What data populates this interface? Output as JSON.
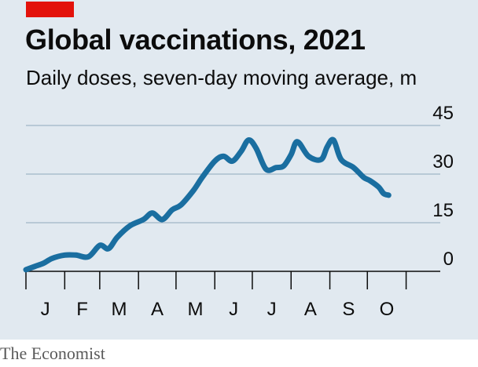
{
  "header": {
    "title": "Global vaccinations, 2021",
    "subtitle": "Daily doses, seven-day moving average, m"
  },
  "footer": {
    "source": "The Economist"
  },
  "colors": {
    "line": "#1a6ea0",
    "panel": "#e1e9f0",
    "accent": "#e3120b",
    "grid": "#8fa9bd"
  },
  "chart_data": {
    "type": "line",
    "title": "Global vaccinations, 2021",
    "subtitle": "Daily doses, seven-day moving average, m",
    "xlabel": "",
    "ylabel": "",
    "ylim": [
      0,
      45
    ],
    "yticks": [
      0,
      15,
      30,
      45
    ],
    "ytick_labels": [
      "0",
      "15",
      "30",
      "45"
    ],
    "xlim": [
      "2021-01-01",
      "2021-10-31"
    ],
    "month_ticks": [
      "2021-01-01",
      "2021-02-01",
      "2021-03-01",
      "2021-04-01",
      "2021-05-01",
      "2021-06-01",
      "2021-07-01",
      "2021-08-01",
      "2021-09-01",
      "2021-10-01",
      "2021-11-01"
    ],
    "xtick_labels": [
      "J",
      "F",
      "M",
      "A",
      "M",
      "J",
      "J",
      "A",
      "S",
      "O"
    ],
    "grid": true,
    "series": [
      {
        "x": [
          "2021-01-01",
          "2021-01-08",
          "2021-01-15",
          "2021-01-22",
          "2021-02-01",
          "2021-02-10",
          "2021-02-20",
          "2021-03-01",
          "2021-03-08",
          "2021-03-15",
          "2021-03-25",
          "2021-04-05",
          "2021-04-12",
          "2021-04-20",
          "2021-04-28",
          "2021-05-05",
          "2021-05-15",
          "2021-05-22",
          "2021-06-01",
          "2021-06-08",
          "2021-06-15",
          "2021-06-22",
          "2021-06-28",
          "2021-07-04",
          "2021-07-12",
          "2021-07-20",
          "2021-07-26",
          "2021-08-01",
          "2021-08-06",
          "2021-08-15",
          "2021-08-25",
          "2021-08-30",
          "2021-09-04",
          "2021-09-10",
          "2021-09-20",
          "2021-09-28",
          "2021-10-03",
          "2021-10-10",
          "2021-10-14",
          "2021-10-18"
        ],
        "values": [
          0.5,
          1.5,
          2.5,
          4,
          5,
          5,
          4.5,
          8,
          7,
          10.5,
          14,
          16,
          18,
          16,
          19,
          20.5,
          25,
          29,
          34,
          35.5,
          34,
          37,
          40.5,
          38,
          31.5,
          32,
          32.5,
          36,
          40,
          35.5,
          34.5,
          38.5,
          40.5,
          34.5,
          32,
          29,
          28,
          26,
          24,
          23.5
        ]
      }
    ]
  }
}
